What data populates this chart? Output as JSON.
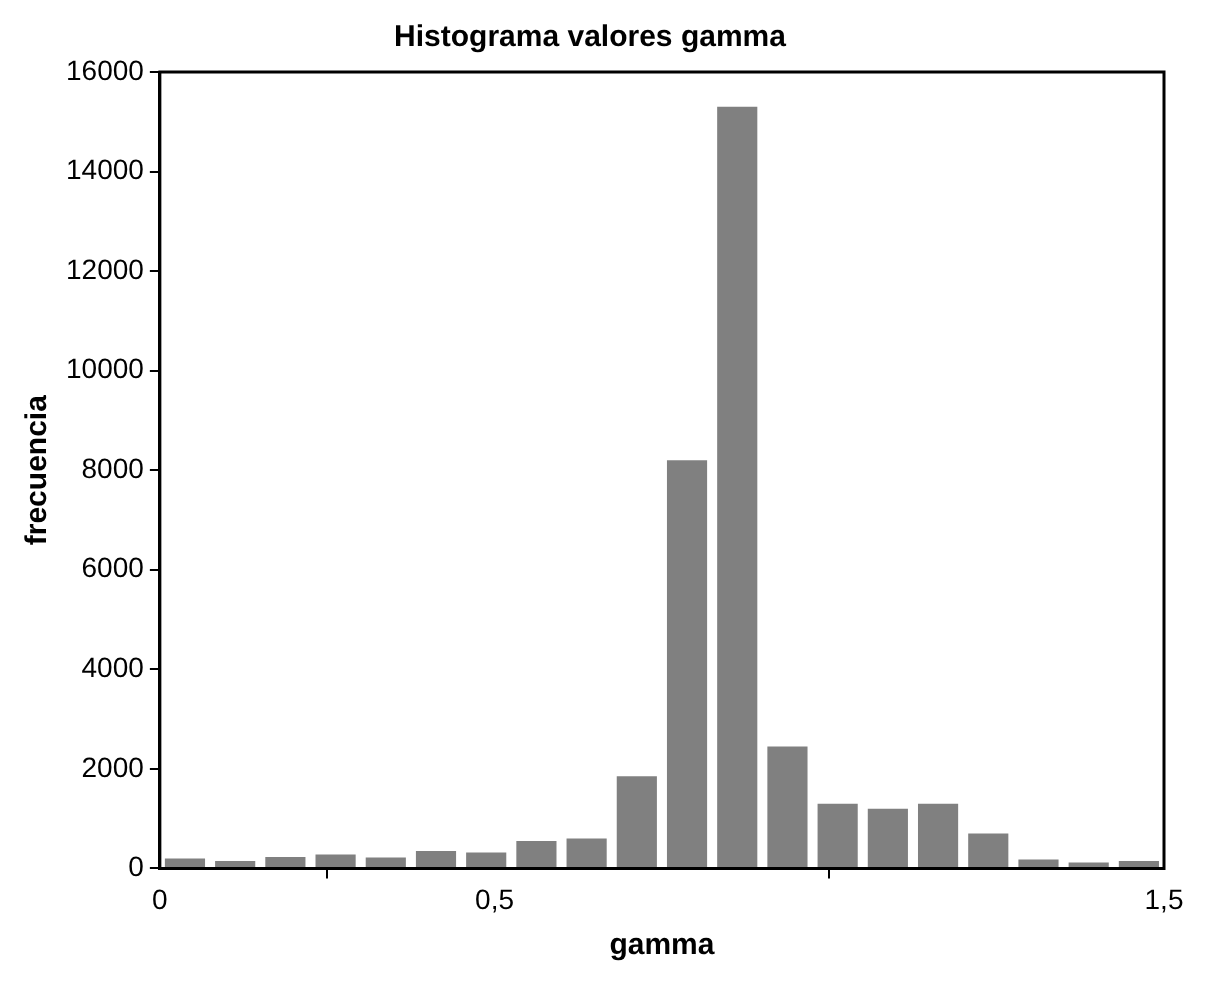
{
  "chart_data": {
    "type": "histogram",
    "title": "Histograma valores gamma",
    "xlabel": "gamma",
    "ylabel": "frecuencia",
    "bins": [
      0,
      0.075,
      0.15,
      0.225,
      0.3,
      0.375,
      0.45,
      0.525,
      0.6,
      0.675,
      0.75,
      0.825,
      0.9,
      0.975,
      1.05,
      1.125,
      1.2,
      1.275,
      1.35,
      1.425,
      1.5
    ],
    "values": [
      200,
      150,
      230,
      280,
      220,
      350,
      320,
      550,
      600,
      1850,
      8200,
      15300,
      2450,
      1300,
      1200,
      1300,
      700,
      180,
      120,
      150
    ],
    "color": "#808080",
    "xlim": [
      0,
      1.5
    ],
    "xticks": [
      0,
      {
        "value": 0.5,
        "label": "0,5"
      },
      {
        "value": 1.5,
        "label": "1,5"
      }
    ],
    "ylim": [
      0,
      16000
    ],
    "yticks": [
      0,
      2000,
      4000,
      6000,
      8000,
      10000,
      12000,
      14000,
      16000
    ],
    "grid": false,
    "legend": false
  }
}
